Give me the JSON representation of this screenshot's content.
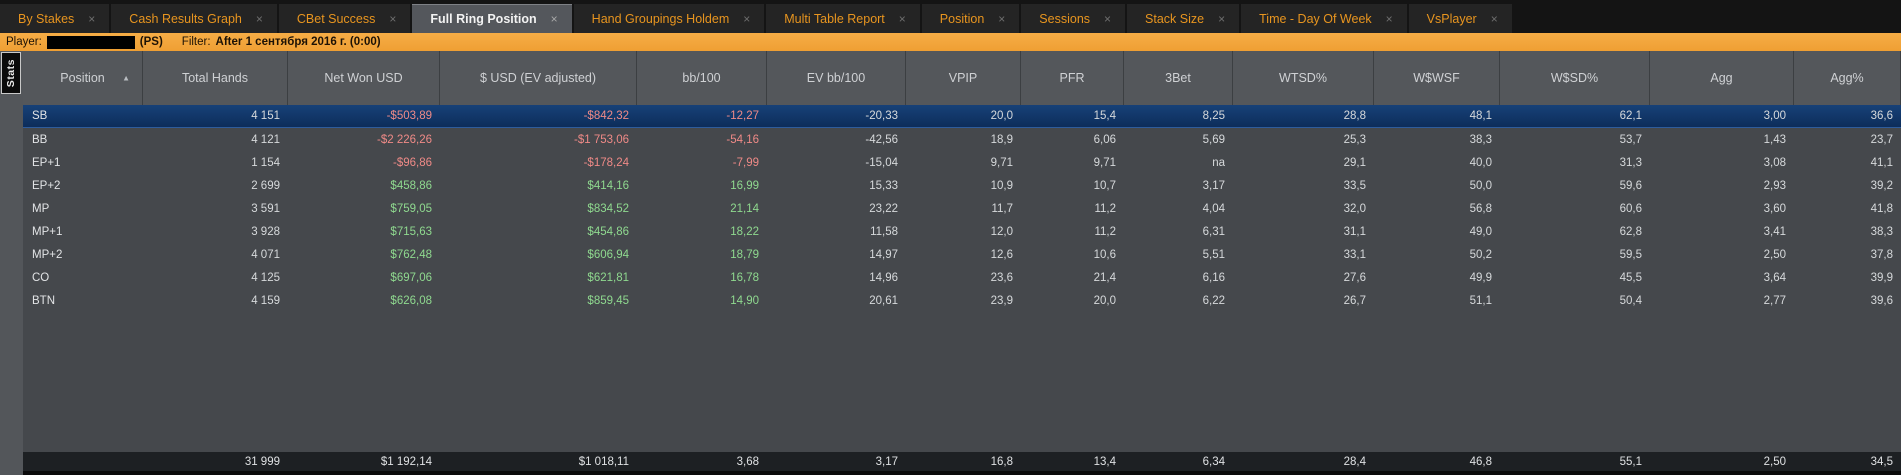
{
  "tabs": {
    "close_glyph": "×",
    "active_index": 3,
    "items": [
      {
        "label": "By Stakes"
      },
      {
        "label": "Cash Results Graph"
      },
      {
        "label": "CBet Success"
      },
      {
        "label": "Full Ring Position"
      },
      {
        "label": "Hand Groupings Holdem"
      },
      {
        "label": "Multi Table Report"
      },
      {
        "label": "Position"
      },
      {
        "label": "Sessions"
      },
      {
        "label": "Stack Size"
      },
      {
        "label": "Time - Day Of Week"
      },
      {
        "label": "VsPlayer"
      }
    ]
  },
  "filter_bar": {
    "player_label": "Player:",
    "player_name_redacted": true,
    "site_label": "(PS)",
    "filter_label": "Filter:",
    "filter_value": "After 1 сентября 2016 г. (0:00)"
  },
  "side": {
    "stats_tab_label": "Stats"
  },
  "table": {
    "columns": [
      "Position",
      "Total Hands",
      "Net Won USD",
      "$ USD (EV adjusted)",
      "bb/100",
      "EV bb/100",
      "VPIP",
      "PFR",
      "3Bet",
      "WTSD%",
      "W$WSF",
      "W$SD%",
      "Agg",
      "Agg%"
    ],
    "sort": {
      "column": "Position",
      "direction": "asc",
      "glyph": "▲"
    },
    "selected_row": 0,
    "sign_colored_columns": [
      2,
      3,
      4
    ],
    "rows": [
      [
        "SB",
        "4 151",
        "-$503,89",
        "-$842,32",
        "-12,27",
        "-20,33",
        "20,0",
        "15,4",
        "8,25",
        "28,8",
        "48,1",
        "62,1",
        "3,00",
        "36,6"
      ],
      [
        "BB",
        "4 121",
        "-$2 226,26",
        "-$1 753,06",
        "-54,16",
        "-42,56",
        "18,9",
        "6,06",
        "5,69",
        "25,3",
        "38,3",
        "53,7",
        "1,43",
        "23,7"
      ],
      [
        "EP+1",
        "1 154",
        "-$96,86",
        "-$178,24",
        "-7,99",
        "-15,04",
        "9,71",
        "9,71",
        "na",
        "29,1",
        "40,0",
        "31,3",
        "3,08",
        "41,1"
      ],
      [
        "EP+2",
        "2 699",
        "$458,86",
        "$414,16",
        "16,99",
        "15,33",
        "10,9",
        "10,7",
        "3,17",
        "33,5",
        "50,0",
        "59,6",
        "2,93",
        "39,2"
      ],
      [
        "MP",
        "3 591",
        "$759,05",
        "$834,52",
        "21,14",
        "23,22",
        "11,7",
        "11,2",
        "4,04",
        "32,0",
        "56,8",
        "60,6",
        "3,60",
        "41,8"
      ],
      [
        "MP+1",
        "3 928",
        "$715,63",
        "$454,86",
        "18,22",
        "11,58",
        "12,0",
        "11,2",
        "6,31",
        "31,1",
        "49,0",
        "62,8",
        "3,41",
        "38,3"
      ],
      [
        "MP+2",
        "4 071",
        "$762,48",
        "$606,94",
        "18,79",
        "14,97",
        "12,6",
        "10,6",
        "5,51",
        "33,1",
        "50,2",
        "59,5",
        "2,50",
        "37,8"
      ],
      [
        "CO",
        "4 125",
        "$697,06",
        "$621,81",
        "16,78",
        "14,96",
        "23,6",
        "21,4",
        "6,16",
        "27,6",
        "49,9",
        "45,5",
        "3,64",
        "39,9"
      ],
      [
        "BTN",
        "4 159",
        "$626,08",
        "$859,45",
        "14,90",
        "20,61",
        "23,9",
        "20,0",
        "6,22",
        "26,7",
        "51,1",
        "50,4",
        "2,77",
        "39,6"
      ]
    ],
    "totals": [
      "",
      "31 999",
      "$1 192,14",
      "$1 018,11",
      "3,68",
      "3,17",
      "16,8",
      "13,4",
      "6,34",
      "28,4",
      "46,8",
      "55,1",
      "2,50",
      "34,5"
    ]
  },
  "colors": {
    "accent_orange": "#F2A43E",
    "tab_text": "#E8951F",
    "negative": "#EF8A87",
    "positive": "#8FD98F",
    "selected_row_top": "#174178",
    "selected_row_bottom": "#0D2D5A"
  }
}
